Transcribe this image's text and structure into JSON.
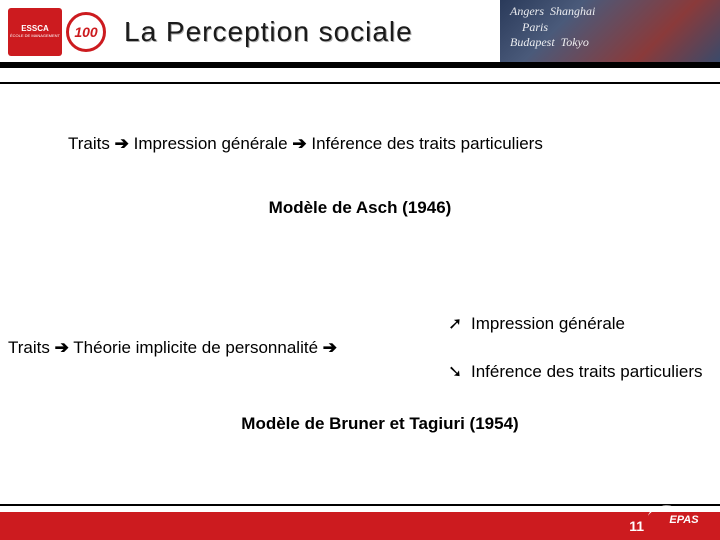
{
  "header": {
    "logo_essca_top": "ESSCA",
    "logo_essca_bottom": "ÉCOLE DE MANAGEMENT",
    "logo_100": "100",
    "title": "La Perception sociale",
    "cities": "Angers Shanghai Paris Budapest Tokyo"
  },
  "content": {
    "line1_traits": "Traits",
    "arrow": "➔",
    "line1_impression": "Impression générale",
    "line1_inference": "Inférence des traits particuliers",
    "model1": "Modèle de Asch (1946)",
    "left_traits": "Traits",
    "left_theory": "Théorie implicite de personnalité",
    "arrow_up": "➚",
    "arrow_dn": "➘",
    "right_top": "Impression générale",
    "right_bot": "Inférence des traits particuliers",
    "model2": "Modèle de Bruner et Tagiuri (1954)"
  },
  "footer": {
    "page": "11",
    "accred": "EPAS"
  },
  "colors": {
    "brand_red": "#cc1b1f",
    "rule_black": "#000000",
    "bg": "#ffffff"
  }
}
